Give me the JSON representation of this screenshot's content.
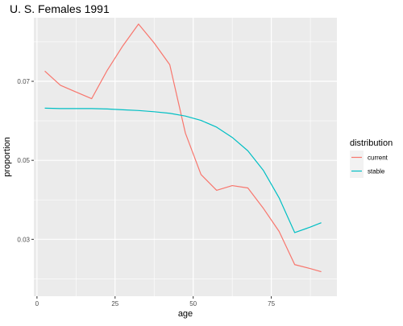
{
  "chart_data": {
    "type": "line",
    "title": "U. S. Females 1991",
    "xlabel": "age",
    "ylabel": "proportion",
    "xlim": [
      -1,
      96
    ],
    "ylim": [
      0.0156,
      0.0861
    ],
    "x_ticks": [
      0,
      25,
      50,
      75
    ],
    "x_tick_labels": [
      "0",
      "25",
      "50",
      "75"
    ],
    "y_ticks": [
      0.03,
      0.05,
      0.07
    ],
    "y_tick_labels": [
      "0.03",
      "0.05",
      "0.07"
    ],
    "grid": true,
    "legend": {
      "title": "distribution",
      "position": "right"
    },
    "colors": {
      "current": "#F8766D",
      "stable": "#00BFC4",
      "panel": "#EBEBEB",
      "grid": "#FFFFFF"
    },
    "series": [
      {
        "name": "current",
        "color": "#F8766D",
        "x": [
          2.5,
          7.5,
          12.5,
          17.5,
          22.5,
          27.5,
          32.5,
          37.5,
          42.5,
          47.5,
          52.5,
          57.5,
          62.5,
          67.5,
          72.5,
          77.5,
          82.5,
          87.5,
          91.0
        ],
        "y": [
          0.0726,
          0.069,
          0.0673,
          0.0656,
          0.0728,
          0.079,
          0.0845,
          0.0797,
          0.0742,
          0.0569,
          0.0464,
          0.0424,
          0.0436,
          0.043,
          0.0378,
          0.032,
          0.0236,
          0.0226,
          0.0218
        ]
      },
      {
        "name": "stable",
        "color": "#00BFC4",
        "x": [
          2.5,
          7.5,
          12.5,
          17.5,
          22.5,
          27.5,
          32.5,
          37.5,
          42.5,
          47.5,
          52.5,
          57.5,
          62.5,
          67.5,
          72.5,
          77.5,
          82.5,
          87.5,
          91.0
        ],
        "y": [
          0.0632,
          0.0631,
          0.0631,
          0.0631,
          0.063,
          0.0628,
          0.0626,
          0.0623,
          0.0619,
          0.0612,
          0.0601,
          0.0584,
          0.0558,
          0.0524,
          0.0474,
          0.0405,
          0.0317,
          0.0331,
          0.0342
        ]
      }
    ]
  }
}
